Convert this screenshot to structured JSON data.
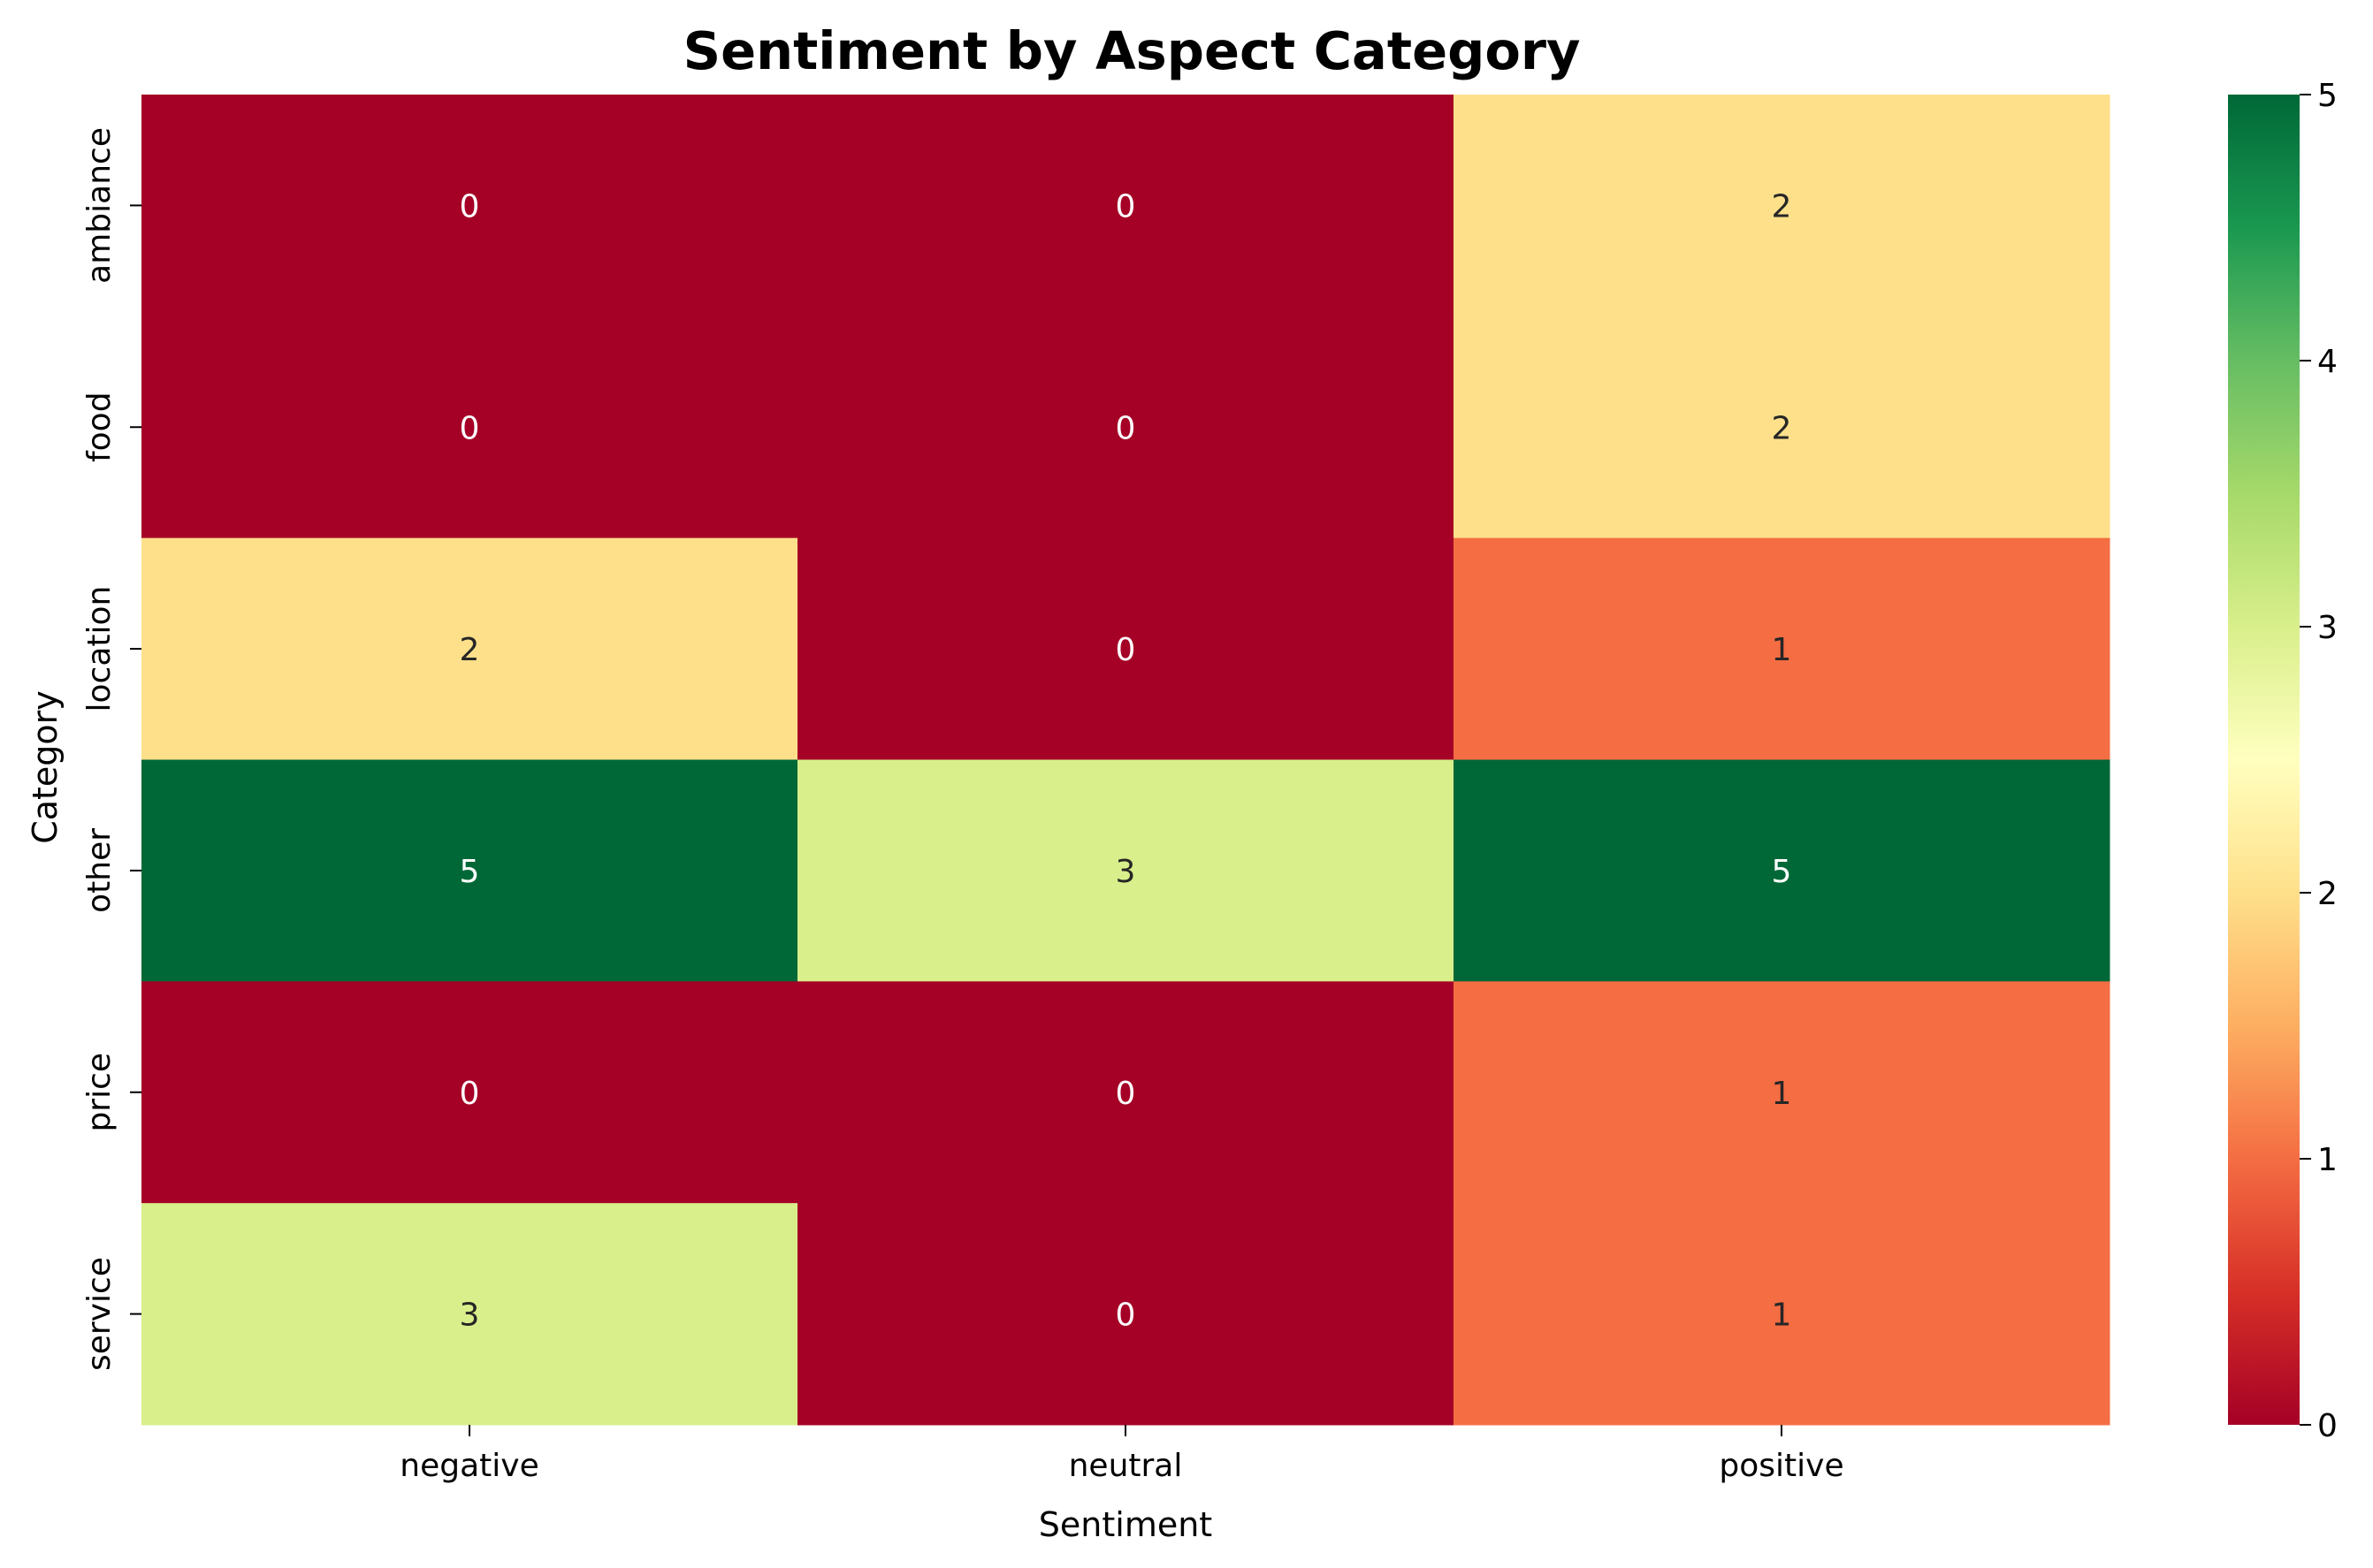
{
  "chart_data": {
    "type": "heatmap",
    "title": "Sentiment by Aspect Category",
    "xlabel": "Sentiment",
    "ylabel": "Category",
    "x_categories": [
      "negative",
      "neutral",
      "positive"
    ],
    "y_categories": [
      "ambiance",
      "food",
      "location",
      "other",
      "price",
      "service"
    ],
    "values": [
      [
        0,
        0,
        2
      ],
      [
        0,
        0,
        2
      ],
      [
        2,
        0,
        1
      ],
      [
        5,
        3,
        5
      ],
      [
        0,
        0,
        1
      ],
      [
        3,
        0,
        1
      ]
    ],
    "colormap": "RdYlGn",
    "vmin": 0,
    "vmax": 5,
    "colorbar_ticks": [
      "0",
      "1",
      "2",
      "3",
      "4",
      "5"
    ],
    "annotations": true,
    "grid": false,
    "colors": {
      "low": "#a50026",
      "mid": "#ffffbf",
      "high": "#006837",
      "text_dark": "#262626",
      "text_light": "#ffffff"
    }
  }
}
